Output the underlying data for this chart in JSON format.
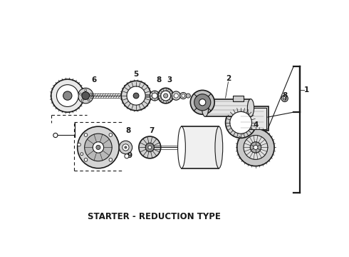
{
  "title": "STARTER - REDUCTION TYPE",
  "bg_color": "#ffffff",
  "line_color": "#1a1a1a",
  "title_fontsize": 8.5,
  "title_fontweight": "bold",
  "fig_w": 4.9,
  "fig_h": 3.6,
  "dpi": 100
}
